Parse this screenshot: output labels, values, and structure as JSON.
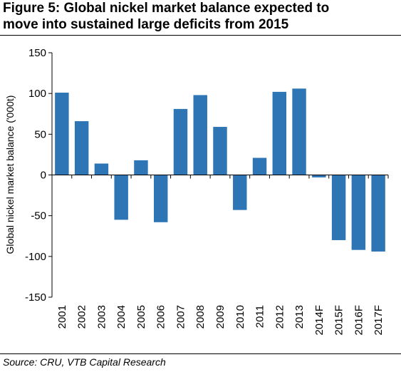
{
  "figure": {
    "title_line1": "Figure 5: Global nickel market balance expected to",
    "title_line2": "move into sustained large deficits from 2015",
    "source": "Source: CRU, VTB Capital Research"
  },
  "chart_data": {
    "type": "bar",
    "title": "",
    "xlabel": "",
    "ylabel": "Global nickel market balance ('000t)",
    "ylim": [
      -150,
      150
    ],
    "yticks": [
      -150,
      -100,
      -50,
      0,
      50,
      100,
      150
    ],
    "ytick_labels": [
      "-150",
      "-100",
      "-50",
      "0",
      "50",
      "100",
      "150"
    ],
    "categories": [
      "2001",
      "2002",
      "2003",
      "2004",
      "2005",
      "2006",
      "2007",
      "2008",
      "2009",
      "2010",
      "2011",
      "2012",
      "2013",
      "2014F",
      "2015F",
      "2016F",
      "2017F"
    ],
    "values": [
      101,
      66,
      14,
      -55,
      18,
      -58,
      81,
      98,
      59,
      -43,
      21,
      102,
      106,
      -3,
      -80,
      -92,
      -94
    ],
    "bar_color": "#2E75B6",
    "grid": false
  }
}
